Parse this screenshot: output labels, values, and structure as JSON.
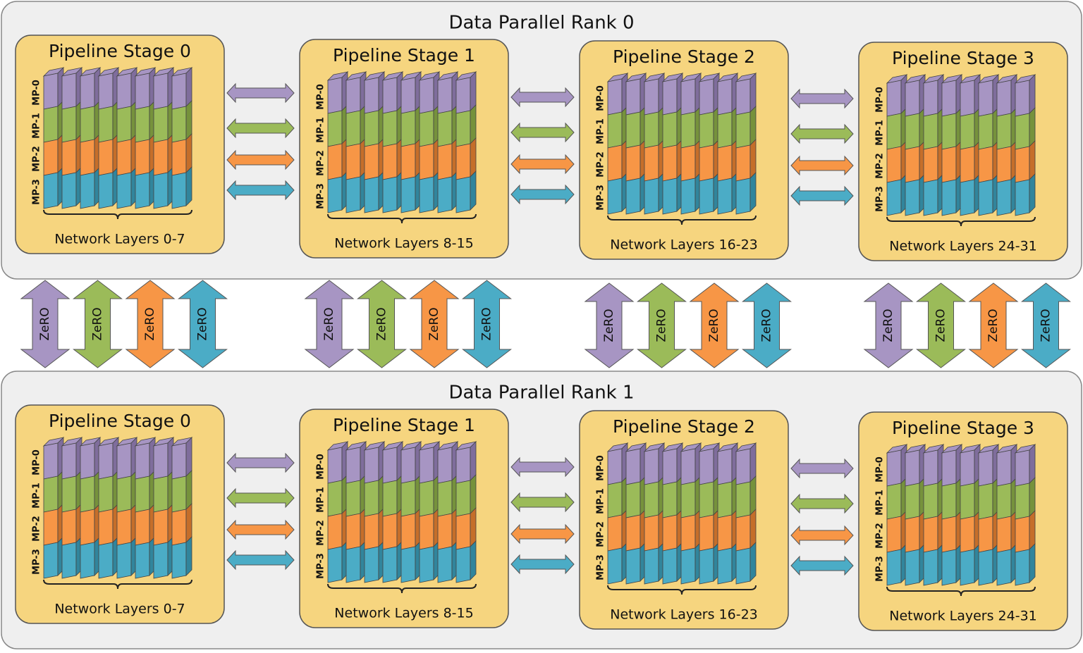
{
  "ranks": [
    {
      "title": "Data Parallel Rank 0",
      "stages": [
        {
          "title": "Pipeline Stage 0",
          "mp_labels": [
            "MP-0",
            "MP-1",
            "MP-2",
            "MP-3"
          ],
          "layers": "Network Layers 0-7"
        },
        {
          "title": "Pipeline Stage 1",
          "mp_labels": [
            "MP-0",
            "MP-1",
            "MP-2",
            "MP-3"
          ],
          "layers": "Network Layers 8-15"
        },
        {
          "title": "Pipeline Stage 2",
          "mp_labels": [
            "MP-0",
            "MP-1",
            "MP-2",
            "MP-3"
          ],
          "layers": "Network Layers 16-23"
        },
        {
          "title": "Pipeline Stage 3",
          "mp_labels": [
            "MP-0",
            "MP-1",
            "MP-2",
            "MP-3"
          ],
          "layers": "Network Layers 24-31"
        }
      ]
    },
    {
      "title": "Data Parallel Rank 1",
      "stages": [
        {
          "title": "Pipeline Stage 0",
          "mp_labels": [
            "MP-0",
            "MP-1",
            "MP-2",
            "MP-3"
          ],
          "layers": "Network Layers 0-7"
        },
        {
          "title": "Pipeline Stage 1",
          "mp_labels": [
            "MP-0",
            "MP-1",
            "MP-2",
            "MP-3"
          ],
          "layers": "Network Layers 8-15"
        },
        {
          "title": "Pipeline Stage 2",
          "mp_labels": [
            "MP-0",
            "MP-1",
            "MP-2",
            "MP-3"
          ],
          "layers": "Network Layers 16-23"
        },
        {
          "title": "Pipeline Stage 3",
          "mp_labels": [
            "MP-0",
            "MP-1",
            "MP-2",
            "MP-3"
          ],
          "layers": "Network Layers 24-31"
        }
      ]
    }
  ],
  "zero_groups": [
    {
      "labels": [
        "ZeRO",
        "ZeRO",
        "ZeRO",
        "ZeRO"
      ]
    },
    {
      "labels": [
        "ZeRO",
        "ZeRO",
        "ZeRO",
        "ZeRO"
      ]
    },
    {
      "labels": [
        "ZeRO",
        "ZeRO",
        "ZeRO",
        "ZeRO"
      ]
    },
    {
      "labels": [
        "ZeRO",
        "ZeRO",
        "ZeRO",
        "ZeRO"
      ]
    }
  ]
}
